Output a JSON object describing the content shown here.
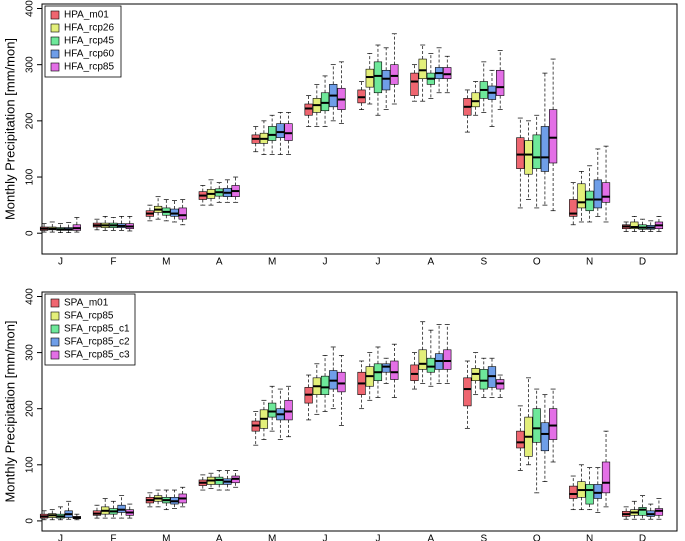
{
  "chart_data": [
    {
      "type": "box",
      "y_label": "Monthly Precipitation [mm/mon]",
      "legend": "top-left",
      "categories": [
        "J",
        "F",
        "M",
        "A",
        "M",
        "J",
        "J",
        "A",
        "S",
        "O",
        "N",
        "D"
      ],
      "ylim": [
        -37,
        408
      ],
      "yticks": [
        0,
        100,
        200,
        300,
        400
      ],
      "series": [
        {
          "name": "HPA_m01",
          "color": "#ef6670",
          "values": [
            [
              2,
              5,
              8,
              11,
              17
            ],
            [
              6,
              11,
              14,
              18,
              25
            ],
            [
              22,
              30,
              35,
              40,
              50
            ],
            [
              50,
              60,
              67,
              74,
              85
            ],
            [
              145,
              160,
              168,
              175,
              190
            ],
            [
              190,
              210,
              222,
              230,
              245
            ],
            [
              220,
              232,
              242,
              255,
              270
            ],
            [
              235,
              245,
              270,
              285,
              300
            ],
            [
              180,
              210,
              225,
              240,
              255
            ],
            [
              45,
              115,
              140,
              170,
              205
            ],
            [
              15,
              30,
              35,
              60,
              90
            ],
            [
              3,
              8,
              12,
              15,
              20
            ]
          ]
        },
        {
          "name": "HFA_rcp26",
          "color": "#e3ef7a",
          "values": [
            [
              2,
              6,
              8,
              11,
              20
            ],
            [
              5,
              10,
              14,
              18,
              30
            ],
            [
              25,
              37,
              42,
              48,
              65
            ],
            [
              50,
              62,
              70,
              78,
              95
            ],
            [
              140,
              160,
              168,
              178,
              200
            ],
            [
              190,
              215,
              228,
              240,
              265
            ],
            [
              230,
              260,
              278,
              292,
              320
            ],
            [
              235,
              275,
              290,
              310,
              335
            ],
            [
              210,
              225,
              235,
              250,
              270
            ],
            [
              60,
              105,
              140,
              165,
              200
            ],
            [
              20,
              45,
              55,
              88,
              110
            ],
            [
              3,
              8,
              11,
              20,
              30
            ]
          ]
        },
        {
          "name": "HFA_rcp45",
          "color": "#6ee89a",
          "values": [
            [
              1,
              5,
              7,
              10,
              17
            ],
            [
              5,
              10,
              14,
              18,
              28
            ],
            [
              22,
              32,
              38,
              45,
              60
            ],
            [
              55,
              66,
              73,
              79,
              90
            ],
            [
              140,
              165,
              175,
              190,
              210
            ],
            [
              190,
              218,
              232,
              250,
              280
            ],
            [
              210,
              250,
              280,
              305,
              335
            ],
            [
              240,
              265,
              275,
              285,
              320
            ],
            [
              215,
              240,
              255,
              270,
              305
            ],
            [
              45,
              115,
              135,
              175,
              210
            ],
            [
              20,
              40,
              60,
              75,
              120
            ],
            [
              3,
              7,
              10,
              15,
              25
            ]
          ]
        },
        {
          "name": "HFA_rcp60",
          "color": "#6f9ee8",
          "values": [
            [
              1,
              5,
              7,
              10,
              19
            ],
            [
              5,
              10,
              13,
              17,
              30
            ],
            [
              20,
              30,
              35,
              43,
              58
            ],
            [
              55,
              65,
              72,
              80,
              95
            ],
            [
              140,
              170,
              180,
              195,
              215
            ],
            [
              200,
              225,
              245,
              265,
              300
            ],
            [
              220,
              255,
              275,
              290,
              330
            ],
            [
              250,
              275,
              285,
              295,
              330
            ],
            [
              190,
              238,
              250,
              262,
              290
            ],
            [
              50,
              110,
              135,
              190,
              285
            ],
            [
              30,
              45,
              60,
              95,
              150
            ],
            [
              3,
              7,
              10,
              14,
              22
            ]
          ]
        },
        {
          "name": "HFA_rcp85",
          "color": "#e36fe6",
          "values": [
            [
              2,
              5,
              9,
              15,
              28
            ],
            [
              4,
              8,
              12,
              17,
              30
            ],
            [
              15,
              25,
              32,
              45,
              60
            ],
            [
              55,
              65,
              75,
              85,
              100
            ],
            [
              140,
              165,
              178,
              195,
              215
            ],
            [
              195,
              220,
              238,
              258,
              305
            ],
            [
              230,
              265,
              280,
              300,
              355
            ],
            [
              250,
              275,
              283,
              295,
              315
            ],
            [
              220,
              245,
              260,
              290,
              325
            ],
            [
              40,
              125,
              170,
              220,
              310
            ],
            [
              20,
              55,
              65,
              90,
              155
            ],
            [
              3,
              8,
              14,
              20,
              30
            ]
          ]
        }
      ]
    },
    {
      "type": "box",
      "y_label": "Monthly Precipitation [mm/mon]",
      "legend": "top-left",
      "categories": [
        "J",
        "F",
        "M",
        "A",
        "M",
        "J",
        "J",
        "A",
        "S",
        "O",
        "N",
        "D"
      ],
      "ylim": [
        -18,
        408
      ],
      "yticks": [
        0,
        100,
        200,
        300,
        400
      ],
      "series": [
        {
          "name": "SPA_m01",
          "color": "#ef6670",
          "values": [
            [
              2,
              5,
              8,
              12,
              18
            ],
            [
              5,
              10,
              13,
              18,
              28
            ],
            [
              25,
              32,
              37,
              42,
              50
            ],
            [
              55,
              63,
              68,
              73,
              82
            ],
            [
              135,
              160,
              170,
              178,
              195
            ],
            [
              180,
              210,
              225,
              238,
              260
            ],
            [
              200,
              225,
              245,
              265,
              285
            ],
            [
              235,
              250,
              262,
              278,
              300
            ],
            [
              165,
              205,
              235,
              255,
              285
            ],
            [
              90,
              130,
              140,
              160,
              205
            ],
            [
              20,
              40,
              48,
              62,
              80
            ],
            [
              3,
              8,
              12,
              17,
              25
            ]
          ]
        },
        {
          "name": "SFA_rcp85",
          "color": "#e3ef7a",
          "values": [
            [
              2,
              6,
              10,
              13,
              20
            ],
            [
              5,
              12,
              18,
              25,
              40
            ],
            [
              25,
              35,
              40,
              45,
              55
            ],
            [
              58,
              65,
              72,
              78,
              85
            ],
            [
              145,
              165,
              182,
              198,
              215
            ],
            [
              190,
              225,
              240,
              255,
              280
            ],
            [
              215,
              240,
              258,
              275,
              300
            ],
            [
              245,
              270,
              280,
              305,
              355
            ],
            [
              225,
              250,
              262,
              272,
              300
            ],
            [
              100,
              115,
              150,
              185,
              255
            ],
            [
              20,
              42,
              55,
              70,
              100
            ],
            [
              3,
              10,
              15,
              20,
              35
            ]
          ]
        },
        {
          "name": "SFA_rcp85_c1",
          "color": "#6ee89a",
          "values": [
            [
              2,
              5,
              8,
              12,
              25
            ],
            [
              5,
              12,
              17,
              22,
              35
            ],
            [
              20,
              32,
              37,
              42,
              55
            ],
            [
              55,
              65,
              73,
              78,
              90
            ],
            [
              160,
              185,
              195,
              210,
              240
            ],
            [
              195,
              225,
              238,
              258,
              295
            ],
            [
              220,
              250,
              265,
              280,
              310
            ],
            [
              240,
              265,
              275,
              290,
              340
            ],
            [
              220,
              235,
              250,
              270,
              290
            ],
            [
              50,
              140,
              165,
              200,
              235
            ],
            [
              20,
              30,
              55,
              65,
              95
            ],
            [
              3,
              10,
              20,
              24,
              45
            ]
          ]
        },
        {
          "name": "SFA_rcp85_c2",
          "color": "#6f9ee8",
          "values": [
            [
              3,
              6,
              12,
              18,
              35
            ],
            [
              5,
              15,
              20,
              28,
              45
            ],
            [
              22,
              30,
              35,
              42,
              55
            ],
            [
              55,
              65,
              70,
              75,
              90
            ],
            [
              145,
              180,
              190,
              200,
              235
            ],
            [
              200,
              235,
              250,
              268,
              310
            ],
            [
              245,
              265,
              275,
              280,
              290
            ],
            [
              245,
              270,
              285,
              298,
              350
            ],
            [
              220,
              238,
              258,
              275,
              290
            ],
            [
              70,
              125,
              155,
              175,
              225
            ],
            [
              15,
              40,
              50,
              65,
              95
            ],
            [
              3,
              8,
              12,
              18,
              30
            ]
          ]
        },
        {
          "name": "SFA_rcp85_c3",
          "color": "#e36fe6",
          "values": [
            [
              2,
              4,
              6,
              8,
              12
            ],
            [
              5,
              10,
              15,
              20,
              30
            ],
            [
              25,
              32,
              40,
              48,
              60
            ],
            [
              60,
              68,
              75,
              80,
              90
            ],
            [
              150,
              180,
              195,
              215,
              240
            ],
            [
              170,
              230,
              245,
              265,
              295
            ],
            [
              220,
              252,
              265,
              285,
              315
            ],
            [
              245,
              270,
              285,
              305,
              350
            ],
            [
              220,
              235,
              245,
              252,
              260
            ],
            [
              105,
              145,
              170,
              200,
              235
            ],
            [
              25,
              50,
              68,
              105,
              160
            ],
            [
              3,
              10,
              18,
              22,
              40
            ]
          ]
        }
      ]
    }
  ]
}
